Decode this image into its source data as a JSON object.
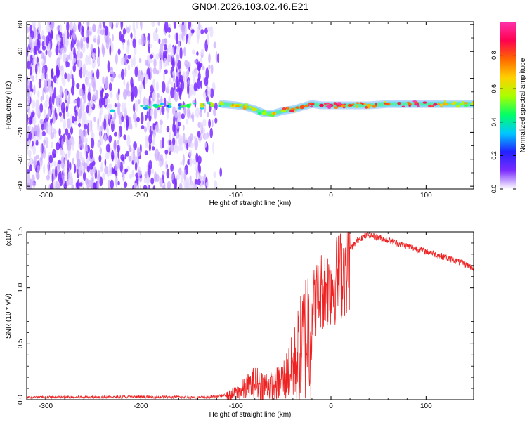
{
  "title": "GN04.2026.103.02.46.E21",
  "colors": {
    "background": "#ffffff",
    "axis": "#000000",
    "snr_line": "#ee2222",
    "scatter_purple": "#7a2cff"
  },
  "chart_data": [
    {
      "type": "heatmap",
      "name": "spectrogram",
      "xlabel": "Height of straight line (km)",
      "ylabel": "Frequency (Hz)",
      "xlim": [
        -320,
        150
      ],
      "ylim": [
        -62,
        62
      ],
      "xticks": [
        -300,
        -200,
        -100,
        0,
        100
      ],
      "yticks": [
        -60,
        -40,
        -20,
        0,
        20,
        40,
        60
      ],
      "ridge_points": [
        {
          "x": -230,
          "y": -4,
          "v": 0.35
        },
        {
          "x": -195,
          "y": -2,
          "v": 0.3
        },
        {
          "x": -185,
          "y": 0,
          "v": 0.4
        },
        {
          "x": -170,
          "y": -1,
          "v": 0.35
        },
        {
          "x": -150,
          "y": 0,
          "v": 0.45
        },
        {
          "x": -135,
          "y": 0,
          "v": 0.5
        },
        {
          "x": -125,
          "y": 0,
          "v": 0.5
        },
        {
          "x": -115,
          "y": 1,
          "v": 0.55
        },
        {
          "x": -100,
          "y": 0,
          "v": 0.6
        },
        {
          "x": -90,
          "y": -1,
          "v": 0.7
        },
        {
          "x": -80,
          "y": -3,
          "v": 0.6
        },
        {
          "x": -70,
          "y": -6,
          "v": 0.55
        },
        {
          "x": -60,
          "y": -6,
          "v": 0.65
        },
        {
          "x": -50,
          "y": -4,
          "v": 0.7
        },
        {
          "x": -40,
          "y": -3,
          "v": 0.75
        },
        {
          "x": -30,
          "y": -1,
          "v": 0.8
        },
        {
          "x": -20,
          "y": 1,
          "v": 0.85
        },
        {
          "x": -10,
          "y": 0,
          "v": 0.9
        },
        {
          "x": 0,
          "y": 0,
          "v": 0.92
        },
        {
          "x": 20,
          "y": 0,
          "v": 0.8
        },
        {
          "x": 40,
          "y": 0,
          "v": 0.7
        },
        {
          "x": 60,
          "y": 1,
          "v": 0.75
        },
        {
          "x": 90,
          "y": 1,
          "v": 0.95
        },
        {
          "x": 120,
          "y": 1,
          "v": 0.7
        },
        {
          "x": 150,
          "y": 1,
          "v": 0.6
        }
      ]
    },
    {
      "type": "colorbar",
      "name": "colorbar",
      "label": "Normalized spectral amplitude",
      "range": [
        0.0,
        1.0
      ],
      "ticks": [
        0.0,
        0.2,
        0.4,
        0.6,
        0.8
      ],
      "tick_labels": [
        "0.0",
        "0.2",
        "0.4",
        "0.6",
        "0.8"
      ],
      "stops": [
        "#ffffff",
        "#7a2cff",
        "#2222ff",
        "#00c8ff",
        "#00ff66",
        "#aaff00",
        "#ffd000",
        "#ff6600",
        "#ff0050",
        "#ff33aa"
      ]
    },
    {
      "type": "line",
      "name": "snr",
      "xlabel": "Height of straight line (km)",
      "ylabel": "SNR (10 * v/v)",
      "multiplier_label": "(x10",
      "multiplier_exp": "4",
      "xlim": [
        -320,
        150
      ],
      "ylim": [
        0,
        1.5
      ],
      "xticks": [
        -300,
        -200,
        -100,
        0,
        100
      ],
      "yticks": [
        0.0,
        0.5,
        1.0,
        1.5
      ],
      "ytick_labels": [
        "0.0",
        "0.5",
        "1.0",
        "1.5"
      ],
      "envelope": [
        {
          "x": -320,
          "y": 0.02
        },
        {
          "x": -200,
          "y": 0.025
        },
        {
          "x": -130,
          "y": 0.02
        },
        {
          "x": -110,
          "y": 0.04
        },
        {
          "x": -100,
          "y": 0.07
        },
        {
          "x": -90,
          "y": 0.12
        },
        {
          "x": -80,
          "y": 0.18
        },
        {
          "x": -70,
          "y": 0.16
        },
        {
          "x": -60,
          "y": 0.15
        },
        {
          "x": -50,
          "y": 0.22
        },
        {
          "x": -40,
          "y": 0.35
        },
        {
          "x": -30,
          "y": 0.6
        },
        {
          "x": -20,
          "y": 0.9
        },
        {
          "x": -10,
          "y": 1.05
        },
        {
          "x": 0,
          "y": 1.1
        },
        {
          "x": 10,
          "y": 1.2
        },
        {
          "x": 20,
          "y": 1.35
        },
        {
          "x": 30,
          "y": 1.45
        },
        {
          "x": 40,
          "y": 1.48
        },
        {
          "x": 60,
          "y": 1.43
        },
        {
          "x": 80,
          "y": 1.38
        },
        {
          "x": 100,
          "y": 1.33
        },
        {
          "x": 120,
          "y": 1.28
        },
        {
          "x": 140,
          "y": 1.22
        },
        {
          "x": 150,
          "y": 1.18
        }
      ]
    }
  ]
}
